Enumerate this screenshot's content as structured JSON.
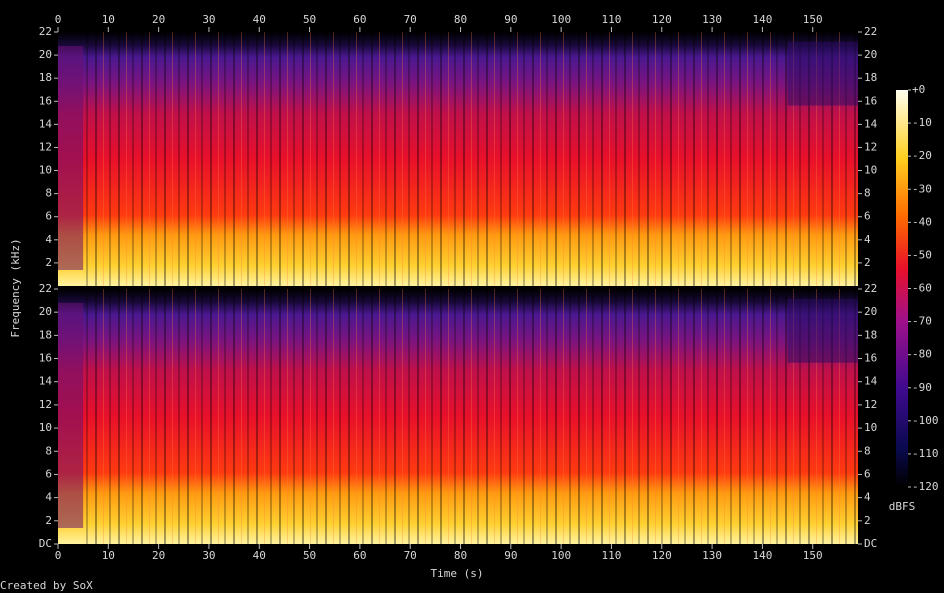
{
  "chart_data": {
    "type": "spectrogram",
    "x_label": "Time (s)",
    "y_label": "Frequency (kHz)",
    "xlim": [
      0,
      159
    ],
    "xticks": [
      0,
      10,
      20,
      30,
      40,
      50,
      60,
      70,
      80,
      90,
      100,
      110,
      120,
      130,
      140,
      150
    ],
    "channels": [
      {
        "ylim": [
          0,
          22
        ],
        "yticks": [
          2,
          4,
          6,
          8,
          10,
          12,
          14,
          16,
          18,
          20,
          22
        ]
      },
      {
        "ylim": [
          0,
          22
        ],
        "yticks": [
          {
            "value": 0,
            "label": "DC"
          },
          2,
          4,
          6,
          8,
          10,
          12,
          14,
          16,
          18,
          20,
          22
        ]
      }
    ],
    "colorbar": {
      "label": "dBFS",
      "lim": [
        -120,
        0
      ],
      "ticks": [
        {
          "value": 0,
          "label": "+0"
        },
        -10,
        -20,
        -30,
        -40,
        -50,
        -60,
        -70,
        -80,
        -90,
        -100,
        -110,
        -120
      ]
    }
  },
  "footer": "Created by SoX"
}
